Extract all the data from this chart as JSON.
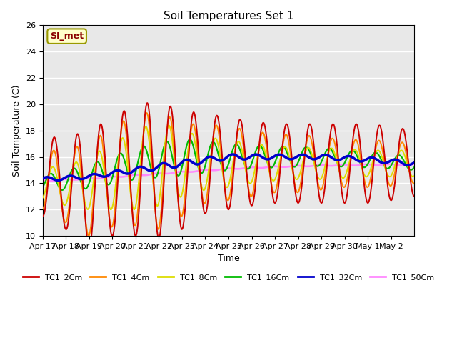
{
  "title": "Soil Temperatures Set 1",
  "xlabel": "Time",
  "ylabel": "Soil Temperature (C)",
  "annotation": "SI_met",
  "ylim": [
    10,
    26
  ],
  "series_colors": {
    "TC1_2Cm": "#cc0000",
    "TC1_4Cm": "#ff8800",
    "TC1_8Cm": "#dddd00",
    "TC1_16Cm": "#00bb00",
    "TC1_32Cm": "#0000cc",
    "TC1_50Cm": "#ff88ff"
  },
  "xtick_labels": [
    "Apr 17",
    "Apr 18",
    "Apr 19",
    "Apr 20",
    "Apr 21",
    "Apr 22",
    "Apr 23",
    "Apr 24",
    "Apr 25",
    "Apr 26",
    "Apr 27",
    "Apr 28",
    "Apr 29",
    "Apr 30",
    "May 1",
    "May 2"
  ],
  "bg_color": "#e8e8e8",
  "linewidth": 1.4
}
